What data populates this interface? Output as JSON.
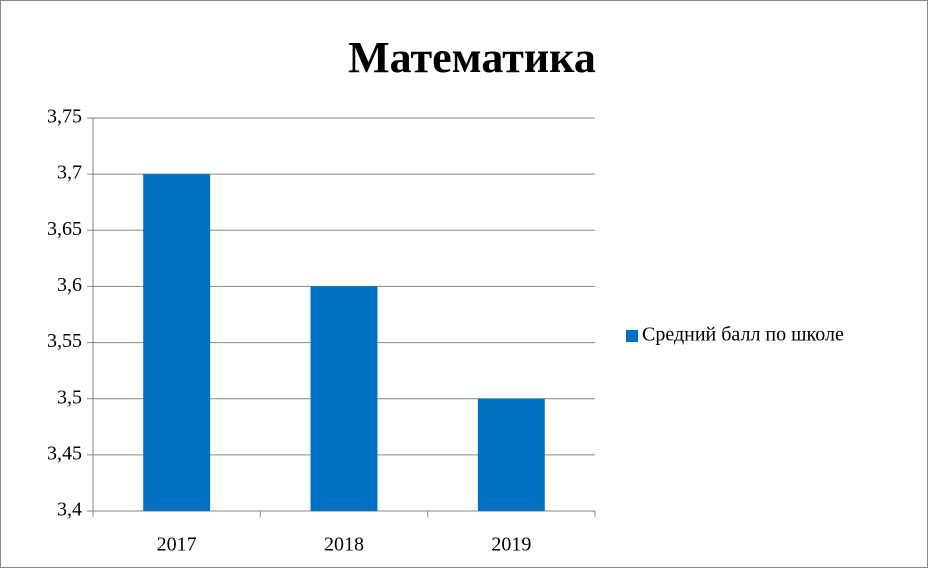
{
  "chart_data": {
    "type": "bar",
    "title": "Математика",
    "categories": [
      "2017",
      "2018",
      "2019"
    ],
    "series": [
      {
        "name": "Средний балл по школе",
        "color": "#0070c0",
        "values": [
          3.7,
          3.6,
          3.5
        ]
      }
    ],
    "ylim": [
      3.4,
      3.75
    ],
    "yticks": [
      {
        "value": 3.4,
        "label": "3,4"
      },
      {
        "value": 3.45,
        "label": "3,45"
      },
      {
        "value": 3.5,
        "label": "3,5"
      },
      {
        "value": 3.55,
        "label": "3,55"
      },
      {
        "value": 3.6,
        "label": "3,6"
      },
      {
        "value": 3.65,
        "label": "3,65"
      },
      {
        "value": 3.7,
        "label": "3,7"
      },
      {
        "value": 3.75,
        "label": "3,75"
      }
    ],
    "grid": true,
    "legend": "right"
  }
}
